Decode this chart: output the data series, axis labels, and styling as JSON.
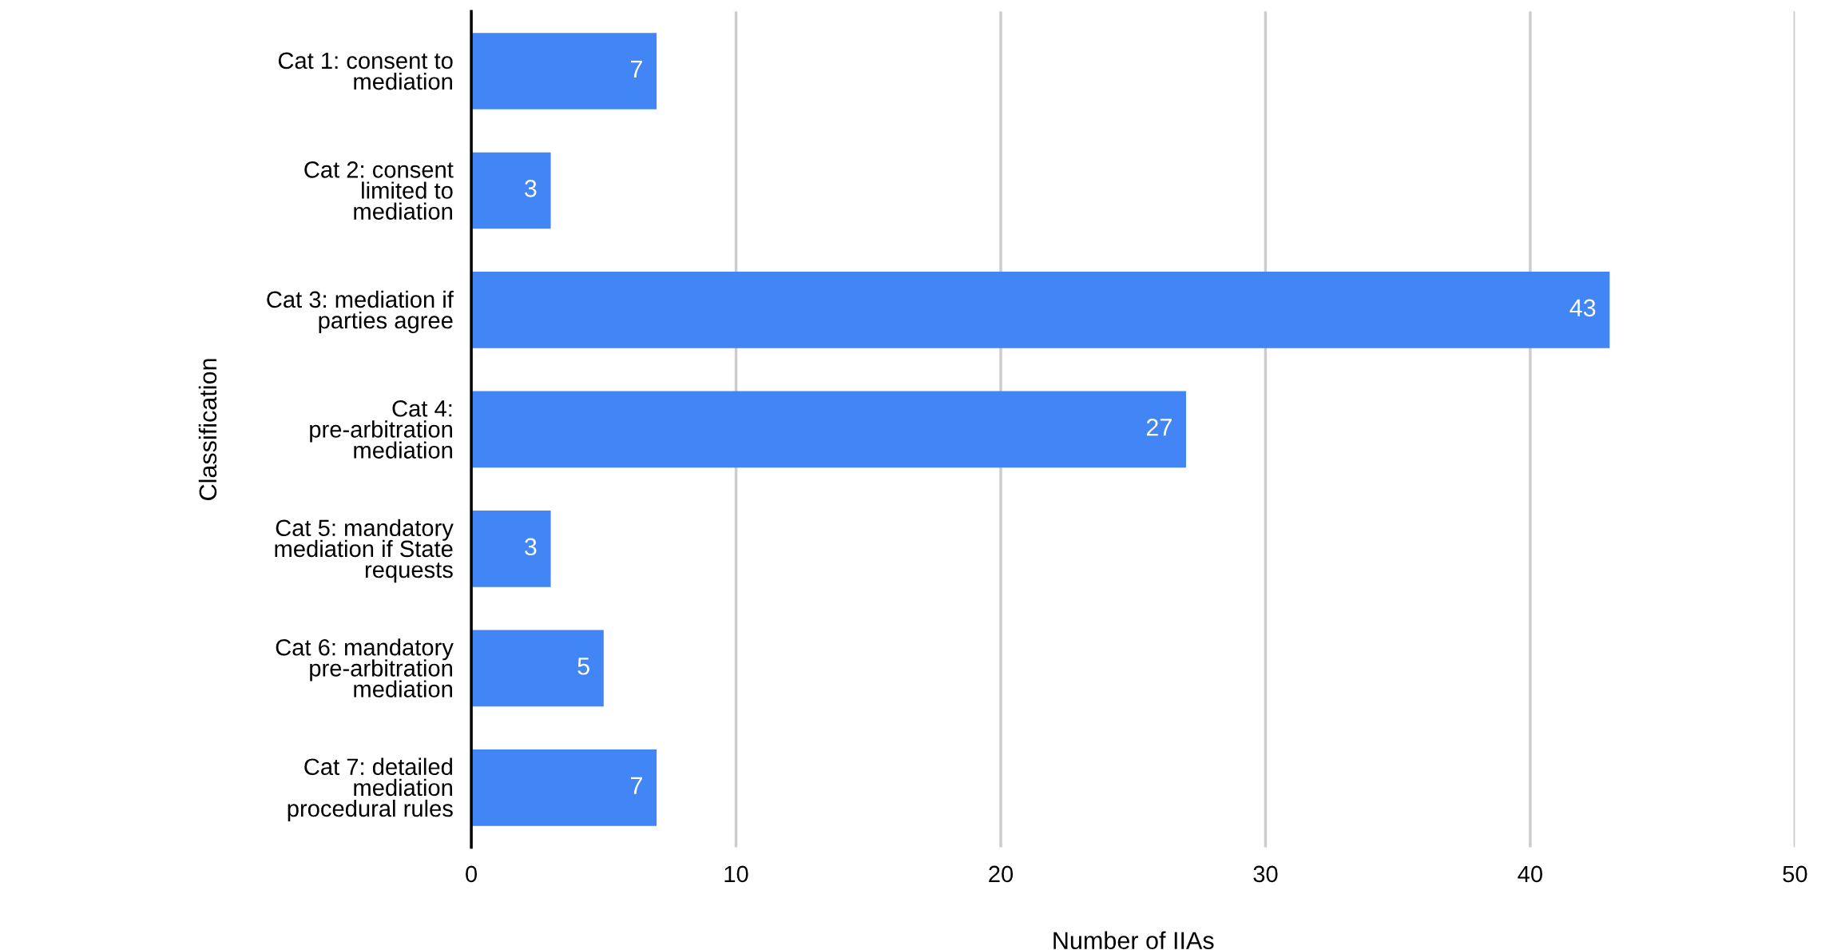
{
  "chart_data": {
    "type": "bar",
    "orientation": "horizontal",
    "xlabel": "Number of IIAs",
    "ylabel": "Classification",
    "categories": [
      "Cat 1: consent to\nmediation",
      "Cat 2: consent\nlimited to\nmediation",
      "Cat 3: mediation if\nparties agree",
      "Cat 4:\npre-arbitration\nmediation",
      "Cat 5: mandatory\nmediation if State\nrequests",
      "Cat 6: mandatory\npre-arbitration\nmediation",
      "Cat 7: detailed\nmediation\nprocedural rules"
    ],
    "values": [
      7,
      3,
      43,
      27,
      3,
      5,
      7
    ],
    "color": "#4285f4",
    "data_labels": true,
    "xlim": [
      0,
      50
    ],
    "xticks": [
      0,
      10,
      20,
      30,
      40,
      50
    ],
    "grid": "x",
    "legend": false
  }
}
